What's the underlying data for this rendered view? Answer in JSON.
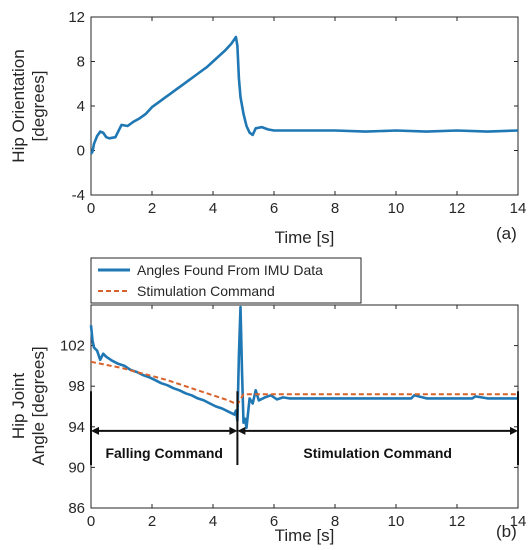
{
  "chart_data": [
    {
      "type": "line",
      "panel_label": "(a)",
      "xlabel": "Time [s]",
      "ylabel": "Hip Orientation\n[degrees]",
      "xlim": [
        0,
        14
      ],
      "ylim": [
        -4,
        12
      ],
      "x_ticks": [
        0,
        2,
        4,
        6,
        8,
        10,
        12,
        14
      ],
      "y_ticks": [
        -4,
        0,
        4,
        8,
        12
      ],
      "grid": false,
      "legend": null,
      "series": [
        {
          "color": "#1f77b4",
          "style": "solid",
          "x": [
            0,
            0.05,
            0.1,
            0.2,
            0.3,
            0.4,
            0.5,
            0.6,
            0.8,
            1.0,
            1.2,
            1.4,
            1.6,
            1.8,
            2.0,
            2.2,
            2.4,
            2.6,
            2.8,
            3.0,
            3.2,
            3.4,
            3.6,
            3.8,
            4.0,
            4.2,
            4.4,
            4.6,
            4.7,
            4.75,
            4.8,
            4.85,
            4.9,
            5.0,
            5.1,
            5.2,
            5.3,
            5.4,
            5.6,
            5.8,
            6.0,
            7.0,
            8.0,
            9.0,
            10.0,
            11.0,
            12.0,
            13.0,
            14.0
          ],
          "y": [
            -0.3,
            -0.1,
            0.6,
            1.3,
            1.7,
            1.6,
            1.2,
            1.1,
            1.2,
            2.3,
            2.2,
            2.6,
            2.9,
            3.3,
            3.9,
            4.3,
            4.7,
            5.1,
            5.5,
            5.9,
            6.3,
            6.7,
            7.1,
            7.5,
            8.0,
            8.5,
            9.0,
            9.6,
            10.0,
            10.2,
            9.4,
            6.5,
            4.8,
            3.3,
            2.2,
            1.6,
            1.4,
            2.0,
            2.1,
            1.9,
            1.8,
            1.8,
            1.8,
            1.7,
            1.8,
            1.7,
            1.8,
            1.7,
            1.8
          ]
        }
      ]
    },
    {
      "type": "line",
      "panel_label": "(b)",
      "xlabel": "Time [s]",
      "ylabel": "Hip Joint\nAngle [degrees]",
      "xlim": [
        0,
        14
      ],
      "ylim": [
        86,
        106
      ],
      "x_ticks": [
        0,
        2,
        4,
        6,
        8,
        10,
        12,
        14
      ],
      "y_ticks": [
        86,
        90,
        94,
        98,
        102
      ],
      "grid": false,
      "legend_position": "top-left, outside above axes",
      "annotations": [
        {
          "label": "Falling Command",
          "x_start": 0,
          "x_end": 4.8,
          "y": 93.6
        },
        {
          "label": "Stimulation Command",
          "x_start": 4.8,
          "x_end": 14,
          "y": 93.6
        }
      ],
      "series": [
        {
          "name": "Angles Found From IMU Data",
          "color": "#1f77b4",
          "style": "solid",
          "x": [
            0,
            0.05,
            0.1,
            0.2,
            0.3,
            0.4,
            0.5,
            0.7,
            0.9,
            1.1,
            1.3,
            1.5,
            1.7,
            1.9,
            2.1,
            2.3,
            2.5,
            2.7,
            2.9,
            3.1,
            3.3,
            3.5,
            3.7,
            3.9,
            4.1,
            4.3,
            4.5,
            4.7,
            4.75,
            4.8,
            4.85,
            4.9,
            4.95,
            5.0,
            5.05,
            5.1,
            5.2,
            5.3,
            5.4,
            5.5,
            5.7,
            5.9,
            6.1,
            6.3,
            6.5,
            7.0,
            8.0,
            9.0,
            10.0,
            10.5,
            10.6,
            11.0,
            12.0,
            12.5,
            12.6,
            13.0,
            14.0
          ],
          "y": [
            104.0,
            102.5,
            101.8,
            101.5,
            100.6,
            101.2,
            100.9,
            100.5,
            100.2,
            100.0,
            99.6,
            99.4,
            99.1,
            98.9,
            98.6,
            98.3,
            98.1,
            97.8,
            97.6,
            97.3,
            97.1,
            96.8,
            96.6,
            96.3,
            96.0,
            95.8,
            95.5,
            95.2,
            95.6,
            94.6,
            101.0,
            105.8,
            99.5,
            94.4,
            94.8,
            93.9,
            96.8,
            96.3,
            97.6,
            96.6,
            96.9,
            97.1,
            96.7,
            96.9,
            96.8,
            96.8,
            96.8,
            96.8,
            96.8,
            96.8,
            97.1,
            96.8,
            96.8,
            96.8,
            97.0,
            96.8,
            96.8
          ]
        },
        {
          "name": "Stimulation Command",
          "color": "#d9622b",
          "style": "dashed",
          "x": [
            0,
            0.5,
            1.0,
            1.5,
            2.0,
            2.5,
            3.0,
            3.5,
            4.0,
            4.5,
            4.8,
            5.0,
            6.0,
            8.0,
            10.0,
            12.0,
            14.0
          ],
          "y": [
            100.4,
            100.1,
            99.8,
            99.4,
            99.0,
            98.6,
            98.1,
            97.6,
            97.1,
            96.6,
            96.2,
            97.2,
            97.2,
            97.2,
            97.2,
            97.2,
            97.2
          ]
        }
      ]
    }
  ]
}
